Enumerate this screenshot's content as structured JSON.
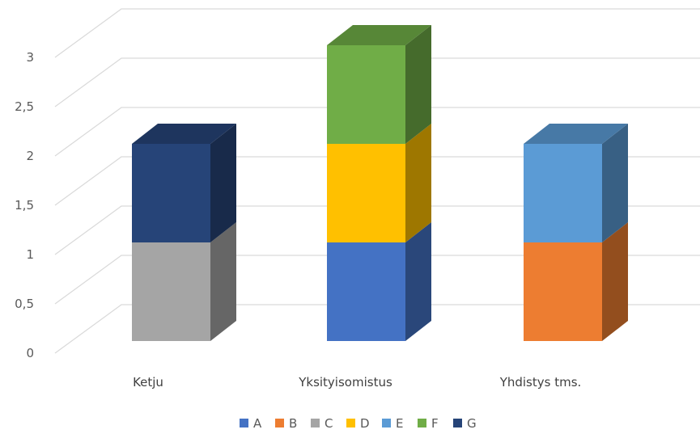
{
  "chart_data": {
    "type": "bar",
    "subtype": "stacked-3d",
    "title": "",
    "xlabel": "",
    "ylabel": "",
    "categories": [
      "Ketju",
      "Yksityisomistus",
      "Yhdistys tms."
    ],
    "series": [
      {
        "name": "A",
        "color": "#4472C4",
        "values": [
          0,
          1,
          0
        ]
      },
      {
        "name": "B",
        "color": "#ED7D31",
        "values": [
          0,
          0,
          1
        ]
      },
      {
        "name": "C",
        "color": "#A5A5A5",
        "values": [
          1,
          0,
          0
        ]
      },
      {
        "name": "D",
        "color": "#FFC000",
        "values": [
          0,
          1,
          0
        ]
      },
      {
        "name": "E",
        "color": "#5B9BD5",
        "values": [
          0,
          0,
          1
        ]
      },
      {
        "name": "F",
        "color": "#70AD47",
        "values": [
          0,
          1,
          0
        ]
      },
      {
        "name": "G",
        "color": "#264478",
        "values": [
          1,
          0,
          0
        ]
      }
    ],
    "ylim": [
      0,
      3
    ],
    "yticks": [
      "0",
      "0,5",
      "1",
      "1,5",
      "2",
      "2,5",
      "3"
    ],
    "grid": true,
    "legend_position": "bottom"
  }
}
